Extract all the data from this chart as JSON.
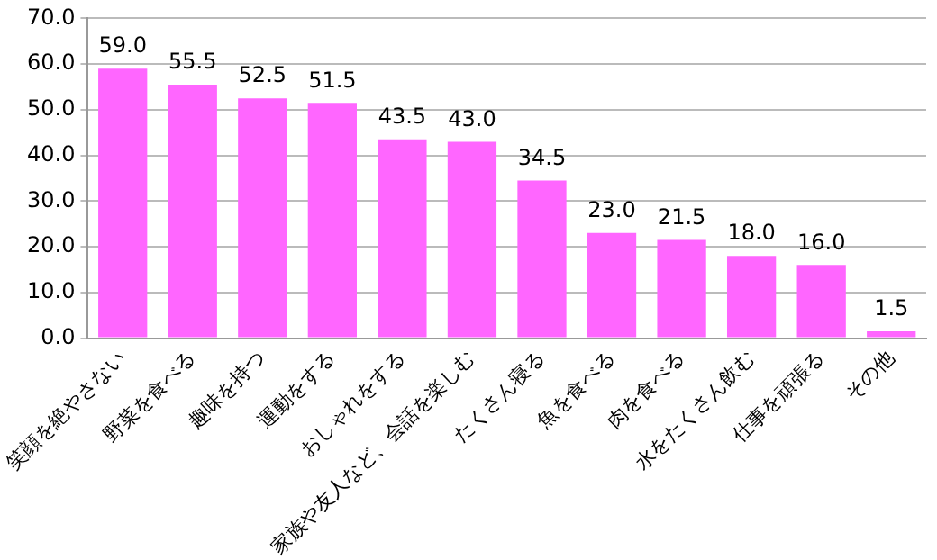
{
  "chart_data": {
    "type": "bar",
    "categories": [
      "笑顔を絶やさない",
      "野菜を食べる",
      "趣味を持つ",
      "運動をする",
      "おしゃれをする",
      "家族や友人など、会話を楽しむ",
      "たくさん寝る",
      "魚を食べる",
      "肉を食べる",
      "水をたくさん飲む",
      "仕事を頑張る",
      "その他"
    ],
    "values": [
      59.0,
      55.5,
      52.5,
      51.5,
      43.5,
      43.0,
      34.5,
      23.0,
      21.5,
      18.0,
      16.0,
      1.5
    ],
    "value_labels": [
      "59.0",
      "55.5",
      "52.5",
      "51.5",
      "43.5",
      "43.0",
      "34.5",
      "23.0",
      "21.5",
      "18.0",
      "16.0",
      "1.5"
    ],
    "color": "#ff66ff",
    "ylim": [
      0,
      70
    ],
    "yticks": [
      {
        "value": 0,
        "label": "0.0"
      },
      {
        "value": 10,
        "label": "10.0"
      },
      {
        "value": 20,
        "label": "20.0"
      },
      {
        "value": 30,
        "label": "30.0"
      },
      {
        "value": 40,
        "label": "40.0"
      },
      {
        "value": 50,
        "label": "50.0"
      },
      {
        "value": 60,
        "label": "60.0"
      },
      {
        "value": 70,
        "label": "70.0"
      }
    ],
    "grid": "y"
  }
}
